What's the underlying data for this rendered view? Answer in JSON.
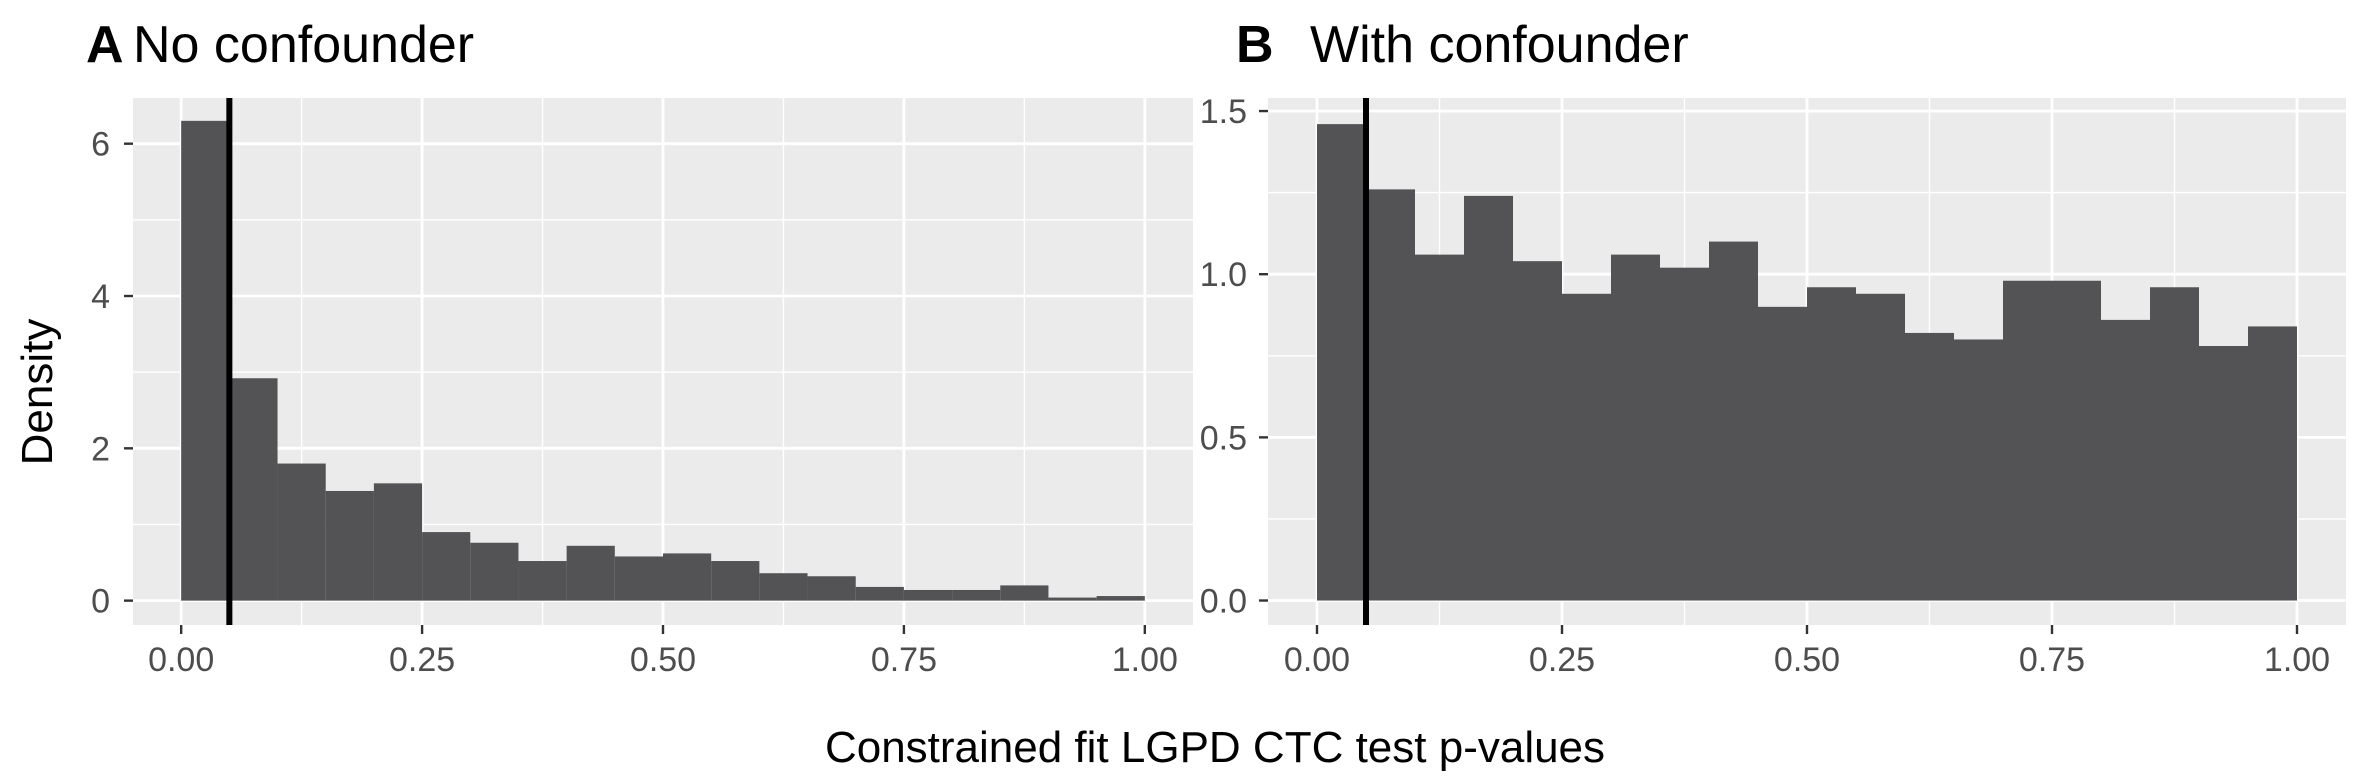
{
  "chart_data": [
    {
      "type": "bar",
      "panel_label": "A",
      "title": "No confounder",
      "xlabel": "Constrained fit LGPD CTC test p-values",
      "ylabel": "Density",
      "xlim": [
        -0.05,
        1.05
      ],
      "ylim": [
        -0.32,
        6.6
      ],
      "xticks": [
        0,
        0.25,
        0.5,
        0.75,
        1
      ],
      "xtick_labels": [
        "0.00",
        "0.25",
        "0.50",
        "0.75",
        "1.00"
      ],
      "yticks": [
        0,
        2,
        4,
        6
      ],
      "ytick_labels": [
        "0",
        "2",
        "4",
        "6"
      ],
      "bin_edges": [
        0,
        0.05,
        0.1,
        0.15,
        0.2,
        0.25,
        0.3,
        0.35,
        0.4,
        0.45,
        0.5,
        0.55,
        0.6,
        0.65,
        0.7,
        0.75,
        0.8,
        0.85,
        0.9,
        0.95,
        1.0
      ],
      "values": [
        6.3,
        2.92,
        1.8,
        1.44,
        1.54,
        0.9,
        0.76,
        0.52,
        0.72,
        0.58,
        0.62,
        0.52,
        0.36,
        0.32,
        0.18,
        0.14,
        0.14,
        0.2,
        0.04,
        0.06
      ],
      "vline": 0.05,
      "grid": true,
      "fill": "#535254",
      "panel_bg": "#ebebeb"
    },
    {
      "type": "bar",
      "panel_label": "B",
      "title": "With confounder",
      "xlabel": "Constrained fit LGPD CTC test p-values",
      "ylabel": "",
      "xlim": [
        -0.05,
        1.05
      ],
      "ylim": [
        -0.075,
        1.54
      ],
      "xticks": [
        0,
        0.25,
        0.5,
        0.75,
        1
      ],
      "xtick_labels": [
        "0.00",
        "0.25",
        "0.50",
        "0.75",
        "1.00"
      ],
      "yticks": [
        0,
        0.5,
        1,
        1.5
      ],
      "ytick_labels": [
        "0.0",
        "0.5",
        "1.0",
        "1.5"
      ],
      "bin_edges": [
        0,
        0.05,
        0.1,
        0.15,
        0.2,
        0.25,
        0.3,
        0.35,
        0.4,
        0.45,
        0.5,
        0.55,
        0.6,
        0.65,
        0.7,
        0.75,
        0.8,
        0.85,
        0.9,
        0.95,
        1.0
      ],
      "values": [
        1.46,
        1.26,
        1.06,
        1.24,
        1.04,
        0.94,
        1.06,
        1.02,
        1.1,
        0.9,
        0.96,
        0.94,
        0.82,
        0.8,
        0.98,
        0.98,
        0.86,
        0.96,
        0.78,
        0.84
      ],
      "vline": 0.05,
      "grid": true,
      "fill": "#535254",
      "panel_bg": "#ebebeb"
    }
  ],
  "shared": {
    "xlabel": "Constrained fit LGPD CTC test p-values",
    "ylabel": "Density"
  }
}
